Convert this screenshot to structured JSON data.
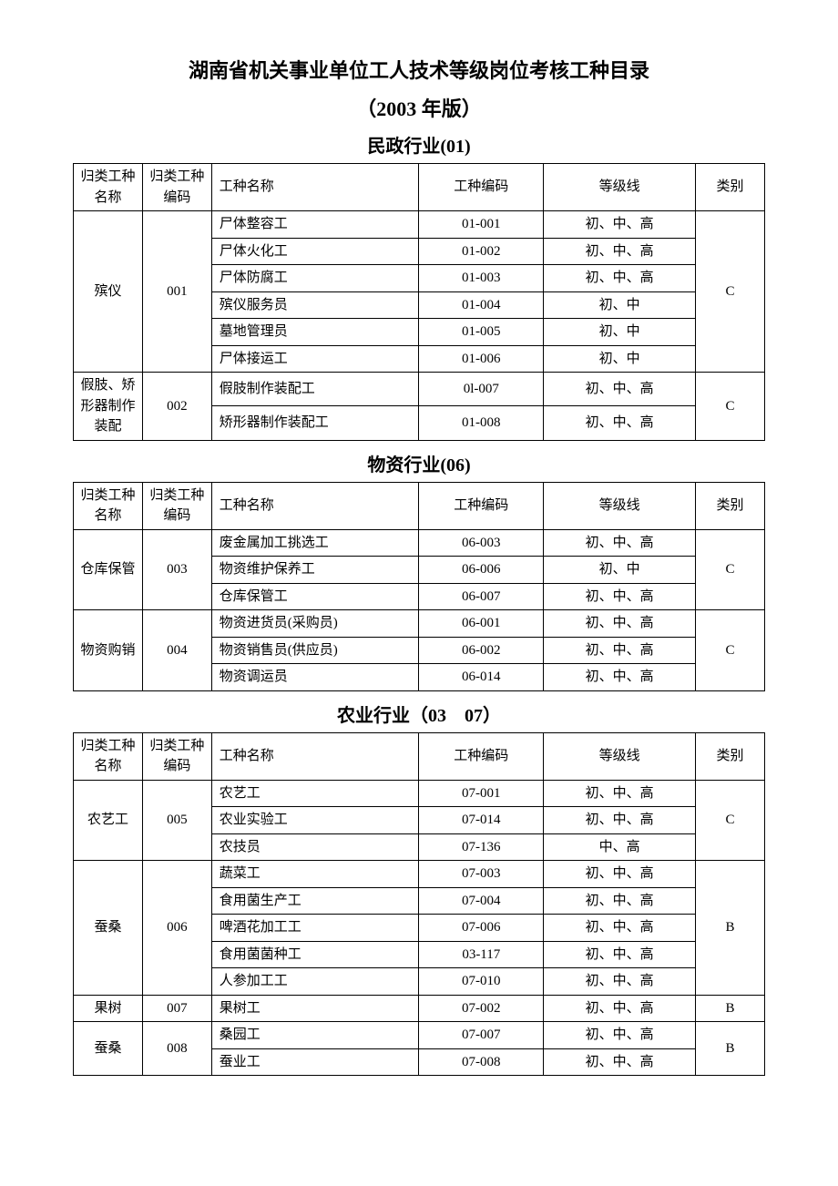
{
  "title": "湖南省机关事业单位工人技术等级岗位考核工种目录",
  "subtitle": "（2003 年版）",
  "columns": {
    "group_name": "归类工种名称",
    "group_code": "归类工种编码",
    "job_name": "工种名称",
    "job_code": "工种编码",
    "level": "等级线",
    "category": "类别"
  },
  "sections": [
    {
      "heading": "民政行业(01)",
      "groups": [
        {
          "name": "殡仪",
          "code": "001",
          "category": "C",
          "rows": [
            {
              "job": "尸体整容工",
              "code": "01-001",
              "level": "初、中、高"
            },
            {
              "job": "尸体火化工",
              "code": "01-002",
              "level": "初、中、高"
            },
            {
              "job": "尸体防腐工",
              "code": "01-003",
              "level": "初、中、高"
            },
            {
              "job": "殡仪服务员",
              "code": "01-004",
              "level": "初、中"
            },
            {
              "job": "墓地管理员",
              "code": "01-005",
              "level": "初、中"
            },
            {
              "job": "尸体接运工",
              "code": "01-006",
              "level": "初、中"
            }
          ]
        },
        {
          "name": "假肢、矫形器制作装配",
          "code": "002",
          "category": "C",
          "rows": [
            {
              "job": "假肢制作装配工",
              "code": "0l-007",
              "level": "初、中、高"
            },
            {
              "job": "矫形器制作装配工",
              "code": "01-008",
              "level": "初、中、高"
            }
          ]
        }
      ]
    },
    {
      "heading": "物资行业(06)",
      "groups": [
        {
          "name": "仓库保管",
          "code": "003",
          "category": "C",
          "rows": [
            {
              "job": "废金属加工挑选工",
              "code": "06-003",
              "level": "初、中、高"
            },
            {
              "job": "物资维护保养工",
              "code": "06-006",
              "level": "初、中"
            },
            {
              "job": "仓库保管工",
              "code": "06-007",
              "level": "初、中、高"
            }
          ]
        },
        {
          "name": "物资购销",
          "code": "004",
          "category": "C",
          "rows": [
            {
              "job": "物资进货员(采购员)",
              "code": "06-001",
              "level": "初、中、高"
            },
            {
              "job": "物资销售员(供应员)",
              "code": "06-002",
              "level": "初、中、高"
            },
            {
              "job": "物资调运员",
              "code": "06-014",
              "level": "初、中、高"
            }
          ]
        }
      ]
    },
    {
      "heading": "农业行业（03　07）",
      "groups": [
        {
          "name": "农艺工",
          "code": "005",
          "category": "C",
          "rows": [
            {
              "job": "农艺工",
              "code": "07-001",
              "level": "初、中、高"
            },
            {
              "job": "农业实验工",
              "code": "07-014",
              "level": "初、中、高"
            },
            {
              "job": "农技员",
              "code": "07-136",
              "level": "中、高"
            }
          ]
        },
        {
          "name": "蚕桑",
          "code": "006",
          "category": "B",
          "rows": [
            {
              "job": "蔬菜工",
              "code": "07-003",
              "level": "初、中、高"
            },
            {
              "job": "食用菌生产工",
              "code": "07-004",
              "level": "初、中、高"
            },
            {
              "job": "啤酒花加工工",
              "code": "07-006",
              "level": "初、中、高"
            },
            {
              "job": "食用菌菌种工",
              "code": "03-117",
              "level": "初、中、高"
            },
            {
              "job": "人参加工工",
              "code": "07-010",
              "level": "初、中、高"
            }
          ]
        },
        {
          "name": "果树",
          "code": "007",
          "category": "B",
          "rows": [
            {
              "job": "果树工",
              "code": "07-002",
              "level": "初、中、高"
            }
          ]
        },
        {
          "name": "蚕桑",
          "code": "008",
          "category": "B",
          "rows": [
            {
              "job": "桑园工",
              "code": "07-007",
              "level": "初、中、高"
            },
            {
              "job": "蚕业工",
              "code": "07-008",
              "level": "初、中、高"
            }
          ]
        }
      ]
    }
  ]
}
